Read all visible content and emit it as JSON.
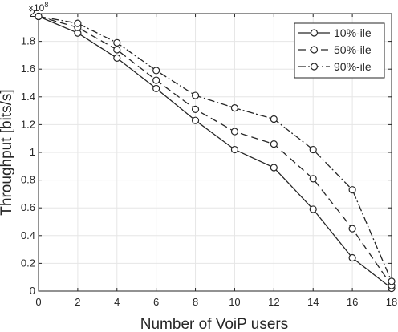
{
  "chart_data": {
    "type": "line",
    "xlabel": "Number of VoiP users",
    "ylabel": "Throughput [bits/s]",
    "y_multiplier_label": "×10",
    "y_multiplier_exponent": "8",
    "xlim": [
      0,
      18
    ],
    "ylim": [
      0,
      2
    ],
    "x_ticks": [
      "0",
      "2",
      "4",
      "6",
      "8",
      "10",
      "12",
      "14",
      "16",
      "18"
    ],
    "y_ticks": [
      "0",
      "0.2",
      "0.4",
      "0.6",
      "0.8",
      "1",
      "1.2",
      "1.4",
      "1.6",
      "1.8",
      "2"
    ],
    "grid": true,
    "legend_position": "top-right",
    "x": [
      0,
      2,
      4,
      6,
      8,
      10,
      12,
      14,
      16,
      18
    ],
    "series": [
      {
        "name": "10%-ile",
        "line_style": "solid",
        "marker": "circle",
        "values": [
          1.98,
          1.86,
          1.68,
          1.46,
          1.23,
          1.02,
          0.89,
          0.59,
          0.24,
          0.02
        ]
      },
      {
        "name": "50%-ile",
        "line_style": "dashed",
        "marker": "circle",
        "values": [
          1.98,
          1.9,
          1.74,
          1.52,
          1.31,
          1.15,
          1.06,
          0.81,
          0.45,
          0.04
        ]
      },
      {
        "name": "90%-ile",
        "line_style": "dashdot",
        "marker": "circle",
        "values": [
          1.98,
          1.93,
          1.79,
          1.59,
          1.41,
          1.32,
          1.24,
          1.02,
          0.73,
          0.07
        ]
      }
    ],
    "colors": {
      "line": "#262626",
      "grid": "#e6e6e6",
      "axis": "#262626",
      "marker_fill": "#ffffff"
    }
  }
}
